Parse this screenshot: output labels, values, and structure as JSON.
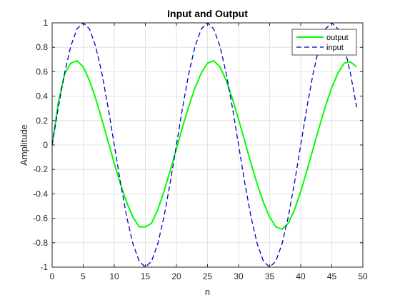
{
  "chart_data": {
    "type": "line",
    "title": "Input and Output",
    "xlabel": "n",
    "ylabel": "Amplitude",
    "xlim": [
      0,
      50
    ],
    "ylim": [
      -1,
      1
    ],
    "xticks": [
      0,
      5,
      10,
      15,
      20,
      25,
      30,
      35,
      40,
      45,
      50
    ],
    "yticks": [
      -1,
      -0.8,
      -0.6,
      -0.4,
      -0.2,
      0,
      0.2,
      0.4,
      0.6,
      0.8,
      1
    ],
    "xtick_labels": [
      "0",
      "5",
      "10",
      "15",
      "20",
      "25",
      "30",
      "35",
      "40",
      "45",
      "50"
    ],
    "ytick_labels": [
      "-1",
      "-0.8",
      "-0.6",
      "-0.4",
      "-0.2",
      "0",
      "0.2",
      "0.4",
      "0.6",
      "0.8",
      "1"
    ],
    "grid": true,
    "legend_position": "top-right",
    "x": [
      0,
      1,
      2,
      3,
      4,
      5,
      6,
      7,
      8,
      9,
      10,
      11,
      12,
      13,
      14,
      15,
      16,
      17,
      18,
      19,
      20,
      21,
      22,
      23,
      24,
      25,
      26,
      27,
      28,
      29,
      30,
      31,
      32,
      33,
      34,
      35,
      36,
      37,
      38,
      39,
      40,
      41,
      42,
      43,
      44,
      45,
      46,
      47,
      48,
      49
    ],
    "series": [
      {
        "name": "output",
        "color": "#00ff00",
        "style": "solid",
        "values": [
          0,
          0.35,
          0.58,
          0.67,
          0.69,
          0.64,
          0.53,
          0.38,
          0.21,
          0.03,
          -0.15,
          -0.32,
          -0.47,
          -0.59,
          -0.67,
          -0.67,
          -0.64,
          -0.53,
          -0.38,
          -0.21,
          -0.03,
          0.15,
          0.32,
          0.47,
          0.59,
          0.67,
          0.69,
          0.64,
          0.53,
          0.38,
          0.21,
          0.03,
          -0.15,
          -0.32,
          -0.47,
          -0.59,
          -0.67,
          -0.69,
          -0.64,
          -0.53,
          -0.38,
          -0.21,
          -0.03,
          0.15,
          0.32,
          0.47,
          0.59,
          0.67,
          0.68,
          0.64
        ]
      },
      {
        "name": "input",
        "color": "#0000c8",
        "style": "dashed",
        "values": [
          0,
          0.309,
          0.588,
          0.809,
          0.951,
          1,
          0.951,
          0.809,
          0.588,
          0.309,
          0,
          -0.309,
          -0.588,
          -0.809,
          -0.951,
          -1,
          -0.951,
          -0.809,
          -0.588,
          -0.309,
          0,
          0.309,
          0.588,
          0.809,
          0.951,
          1,
          0.951,
          0.809,
          0.588,
          0.309,
          0,
          -0.309,
          -0.588,
          -0.809,
          -0.951,
          -1,
          -0.951,
          -0.809,
          -0.588,
          -0.309,
          0,
          0.309,
          0.588,
          0.809,
          0.951,
          1,
          0.951,
          0.809,
          0.588,
          0.309
        ]
      }
    ]
  }
}
